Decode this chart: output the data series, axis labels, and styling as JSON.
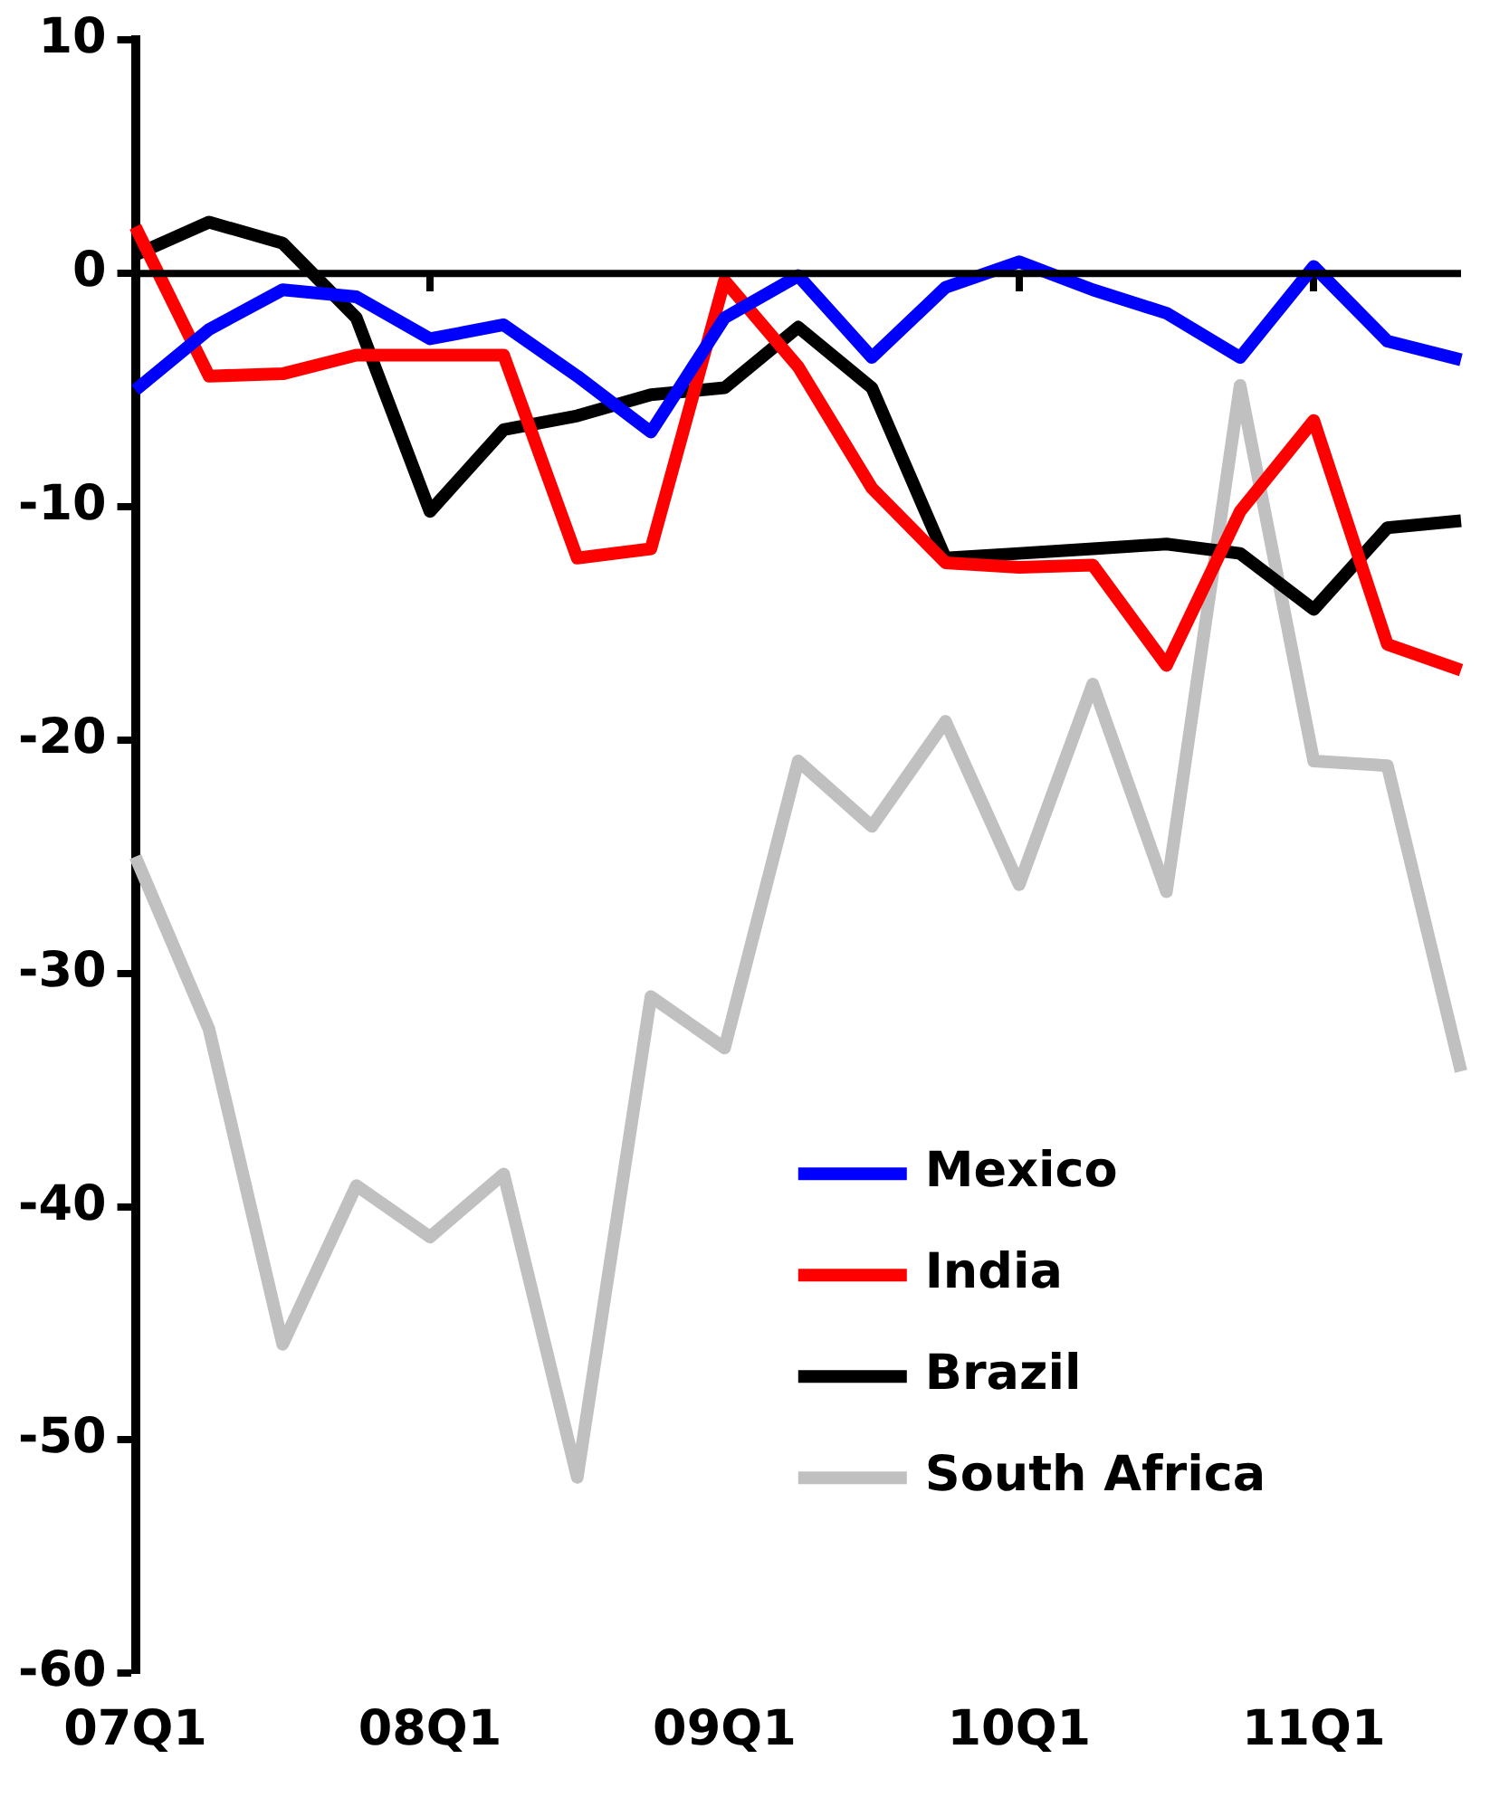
{
  "chart_data": {
    "type": "line",
    "categories": [
      "07Q1",
      null,
      null,
      null,
      "08Q1",
      null,
      null,
      null,
      "09Q1",
      null,
      null,
      null,
      "10Q1",
      null,
      null,
      null,
      "11Q1",
      null,
      null
    ],
    "series": [
      {
        "name": "Mexico",
        "color": "#0000ff",
        "values": [
          -5.0,
          -2.4,
          -0.7,
          -1.0,
          -2.8,
          -2.2,
          -4.4,
          -6.8,
          -1.9,
          -0.1,
          -3.6,
          -0.6,
          0.5,
          -0.7,
          -1.7,
          -3.6,
          0.3,
          -2.9,
          -3.7
        ]
      },
      {
        "name": "India",
        "color": "#ff0000",
        "values": [
          2.0,
          -4.4,
          -4.3,
          -3.5,
          -3.5,
          -3.5,
          -12.2,
          -11.8,
          -0.3,
          -4.0,
          -9.2,
          -12.4,
          -12.6,
          -12.5,
          -16.8,
          -10.2,
          -6.3,
          -15.9,
          -17.0
        ]
      },
      {
        "name": "Brazil",
        "color": "#000000",
        "values": [
          0.8,
          2.2,
          1.3,
          -1.9,
          -10.2,
          -6.7,
          -6.1,
          -5.2,
          -4.9,
          -2.3,
          -4.9,
          -12.2,
          -12.0,
          -11.8,
          -11.6,
          -12.0,
          -14.4,
          -10.9,
          -10.6
        ]
      },
      {
        "name": "South Africa",
        "color": "#c0c0c0",
        "values": [
          -25.0,
          -32.4,
          -45.9,
          -39.1,
          -41.3,
          -38.6,
          -51.6,
          -31.0,
          -33.2,
          -20.9,
          -23.7,
          -19.2,
          -26.2,
          -17.6,
          -26.5,
          -4.8,
          -20.9,
          -21.1,
          -34.2
        ]
      }
    ],
    "ylim": [
      -60,
      10
    ],
    "yticks": [
      -60,
      -50,
      -40,
      -30,
      -20,
      -10,
      0,
      10
    ],
    "ref_lines": [
      {
        "axis": "y",
        "value": 0,
        "color": "#000000"
      }
    ],
    "grid": false,
    "legend": "bottom right",
    "marker": "none",
    "line_style": "solid"
  }
}
